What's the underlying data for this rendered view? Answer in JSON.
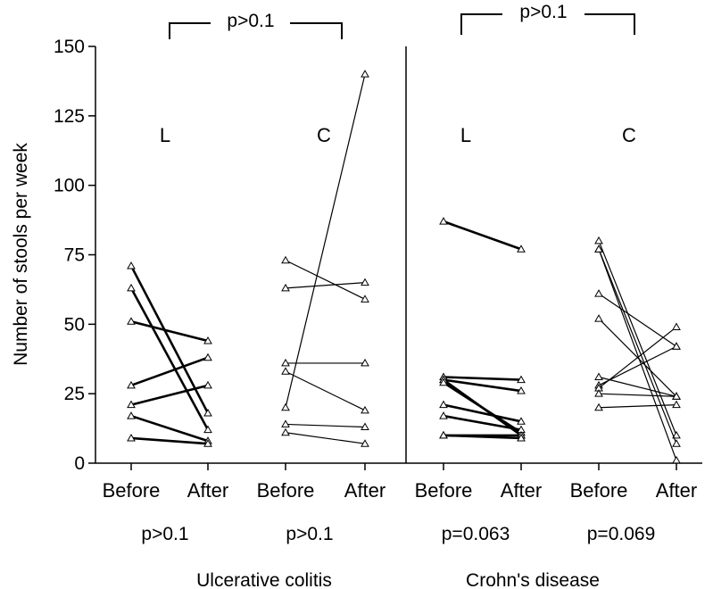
{
  "chart_data": {
    "type": "line",
    "title": "",
    "ylabel": "Number of stools per week",
    "ylim": [
      0,
      150
    ],
    "yticks": [
      0,
      25,
      50,
      75,
      100,
      125,
      150
    ],
    "grid": false,
    "x_tick_labels": [
      "Before",
      "After",
      "Before",
      "After",
      "Before",
      "After",
      "Before",
      "After"
    ],
    "group_labels": [
      "L",
      "C",
      "L",
      "C"
    ],
    "group_pvalues": [
      "p>0.1",
      "p>0.1",
      "p=0.063",
      "p=0.069"
    ],
    "comparison_pvalues": [
      "p>0.1",
      "p>0.1"
    ],
    "disease_labels": [
      "Ulcerative colitis",
      "Crohn's disease"
    ],
    "series": [
      {
        "pairs": [
          [
            71,
            18
          ],
          [
            63,
            12
          ],
          [
            51,
            44
          ],
          [
            28,
            38
          ],
          [
            21,
            28
          ],
          [
            17,
            8
          ],
          [
            9,
            7
          ]
        ]
      },
      {
        "pairs": [
          [
            73,
            59
          ],
          [
            63,
            65
          ],
          [
            36,
            36
          ],
          [
            33,
            19
          ],
          [
            20,
            140
          ],
          [
            14,
            13
          ],
          [
            11,
            7
          ]
        ]
      },
      {
        "pairs": [
          [
            87,
            77
          ],
          [
            31,
            30
          ],
          [
            30,
            26
          ],
          [
            30,
            10
          ],
          [
            29,
            11
          ],
          [
            21,
            15
          ],
          [
            17,
            12
          ],
          [
            10,
            10
          ],
          [
            10,
            9
          ]
        ]
      },
      {
        "pairs": [
          [
            80,
            10
          ],
          [
            77,
            7
          ],
          [
            77,
            1
          ],
          [
            61,
            42
          ],
          [
            52,
            24
          ],
          [
            31,
            24
          ],
          [
            28,
            42
          ],
          [
            27,
            49
          ],
          [
            25,
            24
          ],
          [
            20,
            21
          ]
        ]
      }
    ]
  }
}
